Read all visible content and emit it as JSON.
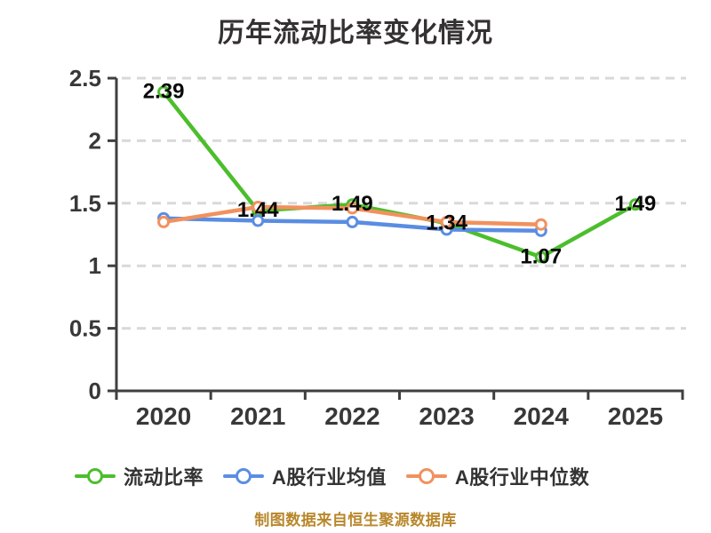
{
  "title": "历年流动比率变化情况",
  "footer": "制图数据来自恒生聚源数据库",
  "colors": {
    "series_green": "#4CBE2C",
    "series_blue": "#5A8DE2",
    "series_orange": "#F2915E",
    "axis": "#3F3F3F",
    "grid": "#D9D9D9",
    "tick_text": "#383838",
    "point_label_text": "#0A0A0A",
    "title_text": "#343231",
    "footer_text": "#B8872B"
  },
  "legend": {
    "items": [
      {
        "label": "流动比率",
        "color": "#4CBE2C"
      },
      {
        "label": "A股行业均值",
        "color": "#5A8DE2"
      },
      {
        "label": "A股行业中位数",
        "color": "#F2915E"
      }
    ]
  },
  "chart_data": {
    "type": "line",
    "title": "历年流动比率变化情况",
    "categories": [
      "2020",
      "2021",
      "2022",
      "2023",
      "2024",
      "2025"
    ],
    "series": [
      {
        "name": "流动比率",
        "color": "#4CBE2C",
        "values": [
          2.39,
          1.44,
          1.49,
          1.34,
          1.07,
          1.49
        ],
        "show_labels": true
      },
      {
        "name": "A股行业均值",
        "color": "#5A8DE2",
        "values": [
          1.38,
          1.36,
          1.35,
          1.29,
          1.28,
          null
        ],
        "show_labels": false
      },
      {
        "name": "A股行业中位数",
        "color": "#F2915E",
        "values": [
          1.35,
          1.47,
          1.46,
          1.35,
          1.33,
          null
        ],
        "show_labels": false
      }
    ],
    "ylim": [
      0,
      2.5
    ],
    "yticks": [
      "0",
      "0.5",
      "1",
      "1.5",
      "2",
      "2.5"
    ],
    "grid": "horizontal-dashed",
    "legend_position": "bottom",
    "marker": "circle-white-fill",
    "xlabel": "",
    "ylabel": ""
  }
}
